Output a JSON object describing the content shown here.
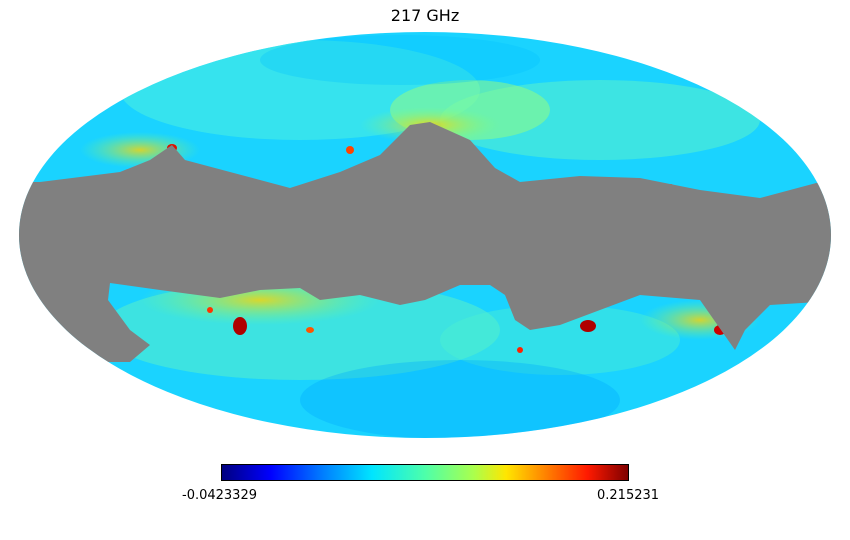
{
  "title": "217 GHz",
  "projection": "mollweide",
  "colormap": "jet",
  "mask_color": "#808080",
  "colorbar": {
    "min_label": "-0.0423329",
    "max_label": "0.215231"
  }
}
